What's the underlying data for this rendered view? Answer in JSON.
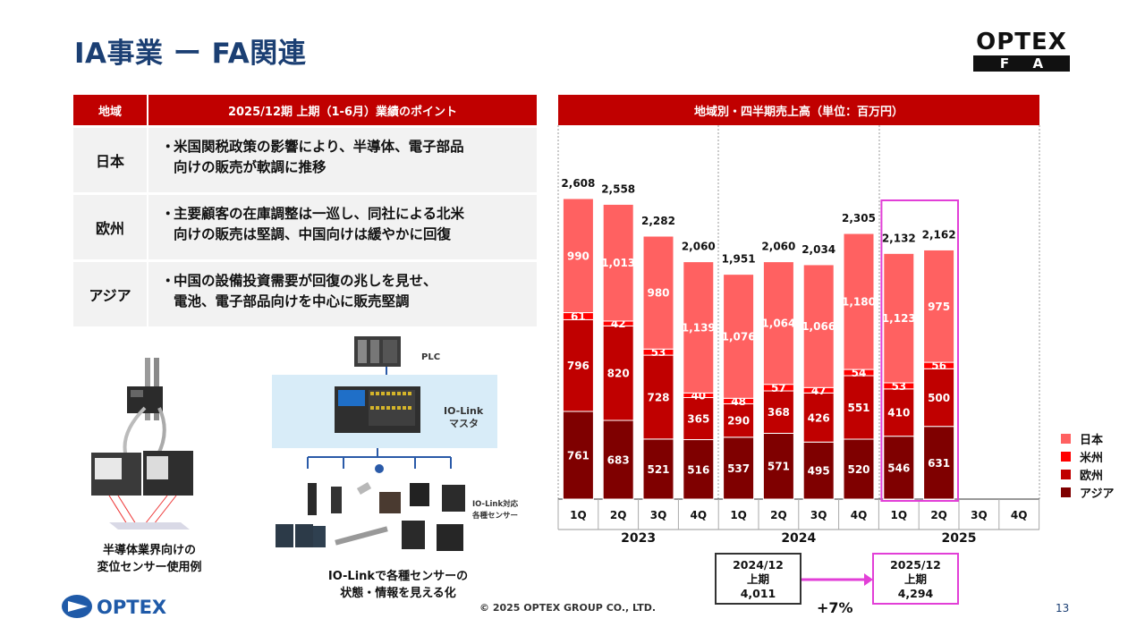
{
  "title": "IA事業 ー FA関連",
  "logo_fa": {
    "top": "OPTEX",
    "bottom": "FA"
  },
  "table": {
    "header_region": "地域",
    "header_points": "2025/12期 上期（1-6月）業績のポイント",
    "rows": [
      {
        "region": "日本",
        "bullet": "・",
        "line1": "米国関税政策の影響により、半導体、電子部品",
        "line2": "向けの販売が軟調に推移"
      },
      {
        "region": "欧州",
        "bullet": "・",
        "line1": "主要顧客の在庫調整は一巡し、同社による北米",
        "line2": "向けの販売は堅調、中国向けは緩やかに回復"
      },
      {
        "region": "アジア",
        "bullet": "・",
        "line1": "中国の設備投資需要が回復の兆しを見せ、",
        "line2": "電池、電子部品向けを中心に販売堅調"
      }
    ]
  },
  "images": {
    "caption1_line1": "半導体業界向けの",
    "caption1_line2": "変位センサー使用例",
    "plc_label": "PLC",
    "master_label1": "IO-Link",
    "master_label2": "マスタ",
    "sensors_label1": "IO-Link対応",
    "sensors_label2": "各種センサー",
    "caption2_line1": "IO-Linkで各種センサーの",
    "caption2_line2": "状態・情報を見える化"
  },
  "footer": {
    "logo": "OPTEX",
    "copyright": "© 2025 OPTEX GROUP CO., LTD.",
    "page": "13"
  },
  "chart_header": "地域別・四半期売上高（単位：百万円）",
  "chart_data": {
    "type": "bar",
    "stacked": true,
    "categories": [
      "1Q",
      "2Q",
      "3Q",
      "4Q",
      "1Q",
      "2Q",
      "3Q",
      "4Q",
      "1Q",
      "2Q",
      "3Q",
      "4Q"
    ],
    "years": [
      "2023",
      "2024",
      "2025"
    ],
    "series": [
      {
        "name": "アジア",
        "color": "#7f0000",
        "values": [
          761,
          683,
          521,
          516,
          537,
          571,
          495,
          520,
          546,
          631,
          null,
          null
        ]
      },
      {
        "name": "欧州",
        "color": "#c00000",
        "values": [
          796,
          820,
          728,
          365,
          290,
          368,
          426,
          551,
          410,
          500,
          null,
          null
        ]
      },
      {
        "name": "米州",
        "color": "#ff0000",
        "values": [
          61,
          42,
          53,
          40,
          48,
          57,
          47,
          54,
          53,
          56,
          null,
          null
        ]
      },
      {
        "name": "日本",
        "color": "#ff6161",
        "values": [
          990,
          1013,
          980,
          1139,
          1076,
          1064,
          1066,
          1180,
          1123,
          975,
          null,
          null
        ]
      }
    ],
    "value_labels": {
      "アジア": [
        "761",
        "683",
        "521",
        "516",
        "537",
        "571",
        "495",
        "520",
        "546",
        "631"
      ],
      "欧州": [
        "796",
        "820",
        "728",
        "365",
        "290",
        "368",
        "426",
        "551",
        "410",
        "500"
      ],
      "米州": [
        "61",
        "42",
        "53",
        "40",
        "48",
        "57",
        "47",
        "54",
        "53",
        "56"
      ],
      "日本": [
        "990",
        "1,013",
        "980",
        "1,139",
        "1,076",
        "1,064",
        "1,066",
        "1,180",
        "1,123",
        "975"
      ]
    },
    "totals": [
      "2,608",
      "2,558",
      "2,282",
      "2,060",
      "1,951",
      "2,060",
      "2,034",
      "2,305",
      "2,132",
      "2,162"
    ],
    "total_values": [
      2608,
      2558,
      2282,
      2060,
      1951,
      2060,
      2034,
      2305,
      2132,
      2162
    ],
    "legend": [
      "日本",
      "米州",
      "欧州",
      "アジア"
    ],
    "legend_position": "right",
    "ylim": [
      0,
      2850
    ],
    "highlight_color": "#e23fd7"
  },
  "compare": {
    "prev_line1": "2024/12",
    "prev_line2": "上期",
    "prev_value": "4,011",
    "cur_line1": "2025/12",
    "cur_line2": "上期",
    "cur_value": "4,294",
    "growth": "+7%"
  }
}
